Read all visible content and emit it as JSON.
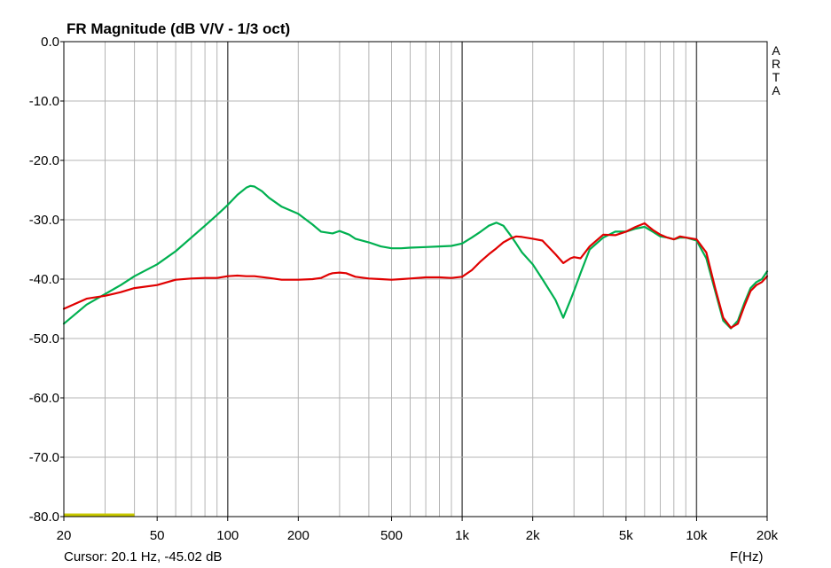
{
  "chart_data": {
    "type": "line",
    "title": "FR Magnitude (dB V/V - 1/3 oct)",
    "xlabel": "F(Hz)",
    "ylabel": "",
    "xscale": "log",
    "xlim": [
      20,
      20000
    ],
    "ylim": [
      -80,
      0
    ],
    "grid": true,
    "y_ticks": [
      0,
      -10,
      -20,
      -30,
      -40,
      -50,
      -60,
      -70,
      -80
    ],
    "y_tick_labels": [
      "0.0",
      "-10.0",
      "-20.0",
      "-30.0",
      "-40.0",
      "-50.0",
      "-60.0",
      "-70.0",
      "-80.0"
    ],
    "x_ticks": [
      20,
      50,
      100,
      200,
      500,
      1000,
      2000,
      5000,
      10000,
      20000
    ],
    "x_tick_labels": [
      "20",
      "50",
      "100",
      "200",
      "500",
      "1k",
      "2k",
      "5k",
      "10k",
      "20k"
    ],
    "brand": "ARTA",
    "cursor_text": "Cursor: 20.1 Hz, -45.02 dB",
    "cursor_marker": {
      "x": [
        20,
        40
      ],
      "y": -79.7,
      "color": "#c8c800"
    },
    "series": [
      {
        "color": "#00b050",
        "x": [
          20,
          25,
          30,
          35,
          40,
          50,
          60,
          70,
          80,
          90,
          100,
          110,
          120,
          125,
          130,
          140,
          150,
          170,
          200,
          230,
          250,
          280,
          300,
          330,
          350,
          400,
          450,
          500,
          550,
          600,
          700,
          800,
          900,
          1000,
          1100,
          1200,
          1300,
          1400,
          1500,
          1600,
          1700,
          1800,
          2000,
          2200,
          2500,
          2700,
          2900,
          3000,
          3200,
          3500,
          4000,
          4500,
          5000,
          5500,
          6000,
          6500,
          7000,
          7500,
          8000,
          8500,
          9000,
          10000,
          11000,
          12000,
          13000,
          14000,
          15000,
          16000,
          17000,
          18000,
          19000,
          20000
        ],
        "values": [
          -47.5,
          -44.3,
          -42.5,
          -41.0,
          -39.5,
          -37.5,
          -35.3,
          -33.0,
          -31.0,
          -29.2,
          -27.5,
          -25.8,
          -24.6,
          -24.3,
          -24.4,
          -25.2,
          -26.3,
          -27.8,
          -29.0,
          -30.8,
          -32.0,
          -32.3,
          -31.9,
          -32.5,
          -33.2,
          -33.8,
          -34.5,
          -34.8,
          -34.8,
          -34.7,
          -34.6,
          -34.5,
          -34.4,
          -34.0,
          -33.0,
          -32.0,
          -31.0,
          -30.5,
          -31.0,
          -32.5,
          -34.0,
          -35.5,
          -37.5,
          -40.0,
          -43.5,
          -46.5,
          -43.5,
          -42.0,
          -39.0,
          -35.0,
          -33.0,
          -32.0,
          -32.0,
          -31.5,
          -31.2,
          -32.0,
          -32.8,
          -33.0,
          -33.3,
          -33.0,
          -33.0,
          -33.5,
          -36.5,
          -42.0,
          -47.0,
          -48.3,
          -47.0,
          -44.0,
          -41.5,
          -40.5,
          -40.0,
          -38.7
        ]
      },
      {
        "color": "#e00000",
        "x": [
          20,
          25,
          30,
          35,
          40,
          50,
          60,
          70,
          80,
          90,
          100,
          110,
          120,
          130,
          150,
          170,
          200,
          230,
          250,
          270,
          280,
          300,
          320,
          350,
          400,
          450,
          500,
          550,
          600,
          700,
          800,
          900,
          1000,
          1100,
          1200,
          1300,
          1400,
          1500,
          1600,
          1700,
          1800,
          2000,
          2200,
          2500,
          2700,
          2900,
          3000,
          3200,
          3500,
          4000,
          4500,
          5000,
          5500,
          6000,
          6500,
          7000,
          7500,
          8000,
          8500,
          9000,
          10000,
          11000,
          12000,
          13000,
          14000,
          15000,
          16000,
          17000,
          18000,
          19000,
          20000
        ],
        "values": [
          -45.0,
          -43.3,
          -42.8,
          -42.2,
          -41.5,
          -41.0,
          -40.1,
          -39.9,
          -39.8,
          -39.8,
          -39.5,
          -39.4,
          -39.5,
          -39.5,
          -39.8,
          -40.1,
          -40.1,
          -40.0,
          -39.8,
          -39.2,
          -39.0,
          -38.9,
          -39.0,
          -39.6,
          -39.9,
          -40.0,
          -40.1,
          -40.0,
          -39.9,
          -39.7,
          -39.7,
          -39.8,
          -39.6,
          -38.5,
          -37.0,
          -35.8,
          -34.8,
          -33.8,
          -33.2,
          -32.8,
          -32.9,
          -33.2,
          -33.5,
          -35.8,
          -37.3,
          -36.5,
          -36.3,
          -36.5,
          -34.5,
          -32.5,
          -32.6,
          -32.0,
          -31.2,
          -30.6,
          -31.7,
          -32.5,
          -33.0,
          -33.3,
          -32.8,
          -33.0,
          -33.3,
          -35.5,
          -41.5,
          -46.5,
          -48.2,
          -47.5,
          -44.5,
          -42.0,
          -41.0,
          -40.5,
          -39.5
        ]
      }
    ]
  }
}
